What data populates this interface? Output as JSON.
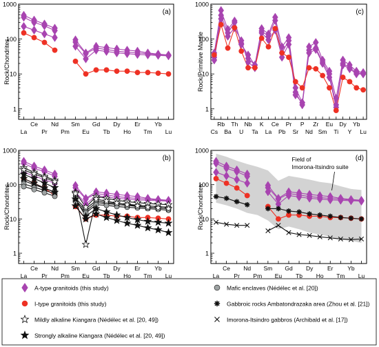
{
  "colors": {
    "a_type": "#a844b0",
    "i_type": "#ee3124",
    "mafic": "#9ea3a3",
    "field": "#d3d3d3",
    "black": "#111111"
  },
  "chart_data": [
    {
      "id": "a",
      "type": "line",
      "panel_label": "(a)",
      "ylabel": "Rock/Chondrites",
      "yscale": "log",
      "ylim": [
        0.5,
        1000
      ],
      "yticks": [
        1,
        10,
        100,
        1000
      ],
      "ytick_labels": [
        "1",
        "10",
        "100",
        "1000"
      ],
      "categories": [
        "La",
        "Ce",
        "Pr",
        "Nd",
        "Pm",
        "Sm",
        "Eu",
        "Gd",
        "Tb",
        "Dy",
        "Ho",
        "Er",
        "Tm",
        "Yb",
        "Lu"
      ],
      "categories_top": [
        "Ce",
        "Nd",
        "Sm",
        "Gd",
        "Dy",
        "Er",
        "Yb"
      ],
      "categories_bottom": [
        "La",
        "Pr",
        "Pm",
        "Eu",
        "Tb",
        "Ho",
        "Tm",
        "Lu"
      ],
      "series": [
        {
          "group": "a_type",
          "marker": "diamond",
          "values": [
            480,
            350,
            270,
            205,
            null,
            95,
            40,
            62,
            57,
            52,
            48,
            45,
            40,
            37,
            35
          ]
        },
        {
          "group": "a_type",
          "marker": "diamond",
          "values": [
            420,
            300,
            240,
            175,
            null,
            82,
            38,
            55,
            50,
            45,
            42,
            40,
            38,
            35,
            34
          ]
        },
        {
          "group": "a_type",
          "marker": "diamond",
          "values": [
            230,
            180,
            140,
            110,
            null,
            62,
            27,
            48,
            44,
            40,
            38,
            36,
            35,
            34,
            33
          ]
        },
        {
          "group": "i_type",
          "marker": "circle",
          "values": [
            150,
            110,
            80,
            48,
            null,
            23,
            10,
            13,
            13,
            12,
            12,
            11,
            11,
            10.5,
            10
          ]
        }
      ]
    },
    {
      "id": "b",
      "type": "line",
      "panel_label": "(b)",
      "ylabel": "Rock/Chondrites",
      "yscale": "log",
      "ylim": [
        0.5,
        1000
      ],
      "yticks": [
        1,
        10,
        100,
        1000
      ],
      "ytick_labels": [
        "1",
        "10",
        "100",
        "1000"
      ],
      "categories": [
        "La",
        "Ce",
        "Pr",
        "Nd",
        "Pm",
        "Sm",
        "Eu",
        "Gd",
        "Tb",
        "Dy",
        "Ho",
        "Er",
        "Tm",
        "Yb",
        "Lu"
      ],
      "categories_top": [
        "Ce",
        "Nd",
        "Sm",
        "Gd",
        "Dy",
        "Er",
        "Yb"
      ],
      "categories_bottom": [
        "La",
        "Pr",
        "Pm",
        "Eu",
        "Tb",
        "Ho",
        "Tm",
        "Lu"
      ],
      "series": [
        {
          "group": "a_type",
          "marker": "diamond",
          "values": [
            480,
            350,
            270,
            205,
            null,
            95,
            40,
            62,
            57,
            52,
            48,
            45,
            40,
            37,
            35
          ]
        },
        {
          "group": "a_type",
          "marker": "diamond",
          "values": [
            420,
            300,
            240,
            175,
            null,
            82,
            38,
            55,
            50,
            45,
            42,
            40,
            38,
            35,
            34
          ]
        },
        {
          "group": "a_type",
          "marker": "diamond",
          "values": [
            230,
            180,
            140,
            110,
            null,
            62,
            27,
            48,
            44,
            40,
            38,
            36,
            35,
            34,
            33
          ]
        },
        {
          "group": "i_type",
          "marker": "circle",
          "values": [
            150,
            110,
            80,
            48,
            null,
            23,
            10,
            13,
            13,
            12,
            12,
            11,
            11,
            10.5,
            10
          ]
        },
        {
          "group": "mafic",
          "marker": "circle",
          "values": [
            130,
            100,
            78,
            62,
            null,
            40,
            20,
            34,
            30,
            28,
            27,
            25,
            24,
            23,
            22
          ]
        },
        {
          "group": "mafic",
          "marker": "circle",
          "values": [
            105,
            85,
            68,
            55,
            null,
            36,
            17,
            30,
            28,
            26,
            25,
            23,
            22,
            21,
            20
          ]
        },
        {
          "group": "mafic",
          "marker": "circle",
          "values": [
            88,
            72,
            58,
            46,
            null,
            32,
            15,
            26,
            25,
            23,
            22,
            21,
            20,
            19,
            18
          ]
        },
        {
          "group": "mild",
          "marker": "star_open",
          "values": [
            310,
            230,
            175,
            135,
            null,
            60,
            22,
            45,
            40,
            35,
            32,
            30,
            28,
            27,
            26
          ]
        },
        {
          "group": "mild",
          "marker": "star_open",
          "values": [
            270,
            205,
            160,
            122,
            null,
            55,
            1.8,
            38,
            33,
            29,
            26,
            24,
            22,
            21,
            20
          ]
        },
        {
          "group": "strong",
          "marker": "star_filled",
          "values": [
            200,
            150,
            112,
            82,
            null,
            38,
            12,
            20,
            16,
            13,
            11,
            9.5,
            8.5,
            8,
            7.5
          ]
        },
        {
          "group": "strong",
          "marker": "star_filled",
          "values": [
            150,
            110,
            80,
            60,
            null,
            24,
            10,
            14,
            11,
            9,
            7.5,
            6.5,
            5.5,
            4.8,
            4
          ]
        }
      ]
    },
    {
      "id": "c",
      "type": "line",
      "panel_label": "(c)",
      "ylabel": "Rock/Primitive Mantle",
      "yscale": "log",
      "ylim": [
        0.5,
        1000
      ],
      "yticks": [
        1,
        10,
        100,
        1000
      ],
      "ytick_labels": [
        "1",
        "10",
        "100",
        "1000"
      ],
      "categories": [
        "Cs",
        "Rb",
        "Ba",
        "Th",
        "U",
        "Nb",
        "Ta",
        "K",
        "La",
        "Ce",
        "Pb",
        "Pr",
        "Sr",
        "P",
        "Nd",
        "Zr",
        "Sm",
        "Eu",
        "Ti",
        "Dy",
        "Y",
        "Yb",
        "Lu"
      ],
      "categories_top": [
        "Rb",
        "Th",
        "Nb",
        "K",
        "Ce",
        "Pr",
        "P",
        "Zr",
        "Eu",
        "Dy",
        "Yb"
      ],
      "categories_bottom": [
        "Cs",
        "Ba",
        "U",
        "Ta",
        "La",
        "Pb",
        "Sr",
        "Nd",
        "Sm",
        "Ti",
        "Y",
        "Lu"
      ],
      "series": [
        {
          "group": "a_type",
          "marker": "diamond",
          "values": [
            40,
            660,
            190,
            330,
            70,
            35,
            18,
            200,
            140,
            420,
            60,
            110,
            4,
            1.5,
            60,
            80,
            25,
            12,
            2,
            25,
            18,
            12,
            11
          ]
        },
        {
          "group": "a_type",
          "marker": "diamond",
          "values": [
            30,
            480,
            150,
            300,
            75,
            28,
            18,
            170,
            120,
            340,
            40,
            90,
            3,
            1.3,
            48,
            55,
            22,
            10,
            1.3,
            20,
            15,
            11,
            10
          ]
        },
        {
          "group": "a_type",
          "marker": "diamond",
          "values": [
            25,
            380,
            120,
            210,
            90,
            22,
            15,
            150,
            95,
            180,
            30,
            70,
            2.5,
            1.5,
            40,
            50,
            20,
            8,
            1.1,
            18,
            14,
            10,
            10
          ]
        },
        {
          "group": "i_type",
          "marker": "circle",
          "values": [
            35,
            260,
            55,
            210,
            45,
            15,
            15,
            105,
            60,
            200,
            40,
            30,
            6,
            4,
            15,
            14,
            9,
            4,
            0.9,
            8,
            6,
            4,
            3.5
          ]
        }
      ]
    },
    {
      "id": "d",
      "type": "line",
      "panel_label": "(d)",
      "ylabel": "Rock/Chondrites",
      "yscale": "log",
      "ylim": [
        0.5,
        1000
      ],
      "yticks": [
        1,
        10,
        100,
        1000
      ],
      "ytick_labels": [
        "1",
        "10",
        "100",
        "1000"
      ],
      "categories": [
        "La",
        "Ce",
        "Pr",
        "Nd",
        "Pm",
        "Sm",
        "Eu",
        "Gd",
        "Tb",
        "Dy",
        "Ho",
        "Er",
        "Tm",
        "Yb",
        "Lu"
      ],
      "categories_top": [
        "Ce",
        "Nd",
        "Sm",
        "Gd",
        "Dy",
        "Er",
        "Yb"
      ],
      "categories_bottom": [
        "La",
        "Pr",
        "Pm",
        "Eu",
        "Tb",
        "Ho",
        "Tm",
        "Lu"
      ],
      "field": {
        "label_lines": [
          "Field of",
          "Imorona-Itsindro suite"
        ],
        "upper": [
          800,
          650,
          500,
          400,
          330,
          260,
          130,
          180,
          160,
          140,
          120,
          110,
          90,
          75,
          70
        ],
        "lower": [
          30,
          25,
          20,
          15,
          13,
          9,
          5,
          6,
          5,
          4,
          3.5,
          3,
          2.5,
          2.3,
          2
        ]
      },
      "series": [
        {
          "group": "a_type",
          "marker": "diamond",
          "values": [
            480,
            350,
            270,
            205,
            null,
            95,
            40,
            62,
            57,
            52,
            48,
            45,
            40,
            37,
            35
          ]
        },
        {
          "group": "a_type",
          "marker": "diamond",
          "values": [
            420,
            300,
            240,
            175,
            null,
            82,
            38,
            55,
            50,
            45,
            42,
            40,
            38,
            35,
            34
          ]
        },
        {
          "group": "a_type",
          "marker": "diamond",
          "values": [
            230,
            180,
            140,
            110,
            null,
            62,
            27,
            48,
            44,
            40,
            38,
            36,
            35,
            34,
            33
          ]
        },
        {
          "group": "i_type",
          "marker": "circle",
          "values": [
            150,
            110,
            80,
            48,
            null,
            23,
            10,
            13,
            13,
            12,
            12,
            11,
            11,
            10.5,
            10
          ]
        },
        {
          "group": "gabbroic",
          "marker": "asterisk",
          "values": [
            45,
            40,
            32,
            26,
            null,
            20,
            20,
            17,
            16,
            14,
            13,
            12,
            11,
            10.5,
            10
          ]
        },
        {
          "group": "imorona_gabbro",
          "marker": "cross",
          "values": [
            8,
            7,
            6.5,
            6.5,
            null,
            4.5,
            6.5,
            4,
            3.5,
            3.3,
            3,
            2.8,
            2.6,
            2.5,
            2.6
          ]
        }
      ]
    }
  ],
  "legend": [
    {
      "group": "a_type",
      "marker": "diamond",
      "label": "A-type granitoids (this study)"
    },
    {
      "group": "mafic",
      "marker": "circle",
      "label": "Mafic enclaves (Nédélec et al. [20])"
    },
    {
      "group": "i_type",
      "marker": "circle",
      "label": "I-type granitoids (this study)"
    },
    {
      "group": "gabbroic",
      "marker": "asterisk",
      "label": "Gabbroic rocks Ambatondrazaka area (Zhou et al. [21])"
    },
    {
      "group": "mild",
      "marker": "star_open",
      "label": "Mildly alkaline Kiangara (Nédélec et al. [20, 49])"
    },
    {
      "group": "imorona_gabbro",
      "marker": "cross",
      "label": "Imorona-Itsindro gabbros (Archibald et al. [17])"
    },
    {
      "group": "strong",
      "marker": "star_filled",
      "label": "Strongly alkaline Kiangara (Nédélec et al. [20, 49])"
    }
  ]
}
